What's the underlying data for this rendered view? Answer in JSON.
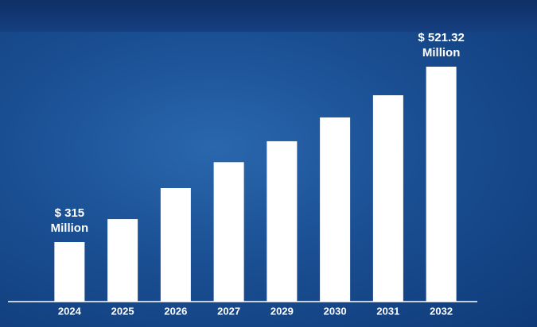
{
  "chart_data": {
    "type": "bar",
    "categories": [
      "2024",
      "2025",
      "2026",
      "2027",
      "2029",
      "2030",
      "2031",
      "2032"
    ],
    "values": [
      315,
      342,
      378.5,
      409,
      433.6,
      461.6,
      487.7,
      521.32
    ],
    "value_labels": [
      "$ 315 Million",
      null,
      null,
      null,
      null,
      null,
      null,
      "$ 521.32 Million"
    ],
    "color": "#ffffff",
    "ylim": [
      245,
      521.32
    ]
  }
}
